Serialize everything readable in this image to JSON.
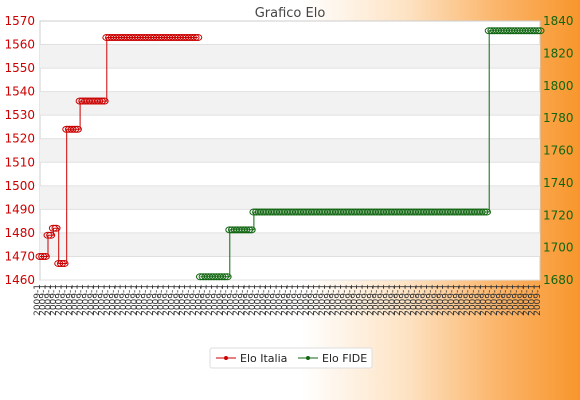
{
  "chart_data": {
    "type": "line",
    "title": "Grafico Elo",
    "left_axis": {
      "ylim": [
        1460,
        1570
      ],
      "ticks": [
        1460,
        1470,
        1480,
        1490,
        1500,
        1510,
        1520,
        1530,
        1540,
        1550,
        1560,
        1570
      ],
      "color": "#cc0000"
    },
    "right_axis": {
      "ylim": [
        1680,
        1840
      ],
      "ticks": [
        1680,
        1700,
        1720,
        1740,
        1760,
        1780,
        1800,
        1820,
        1840
      ],
      "color": "#116611"
    },
    "grid": true,
    "legend_position": "bottom",
    "series": [
      {
        "name": "Elo Italia",
        "axis": "left",
        "color": "#cc0000",
        "points": [
          [
            0,
            1470
          ],
          [
            1,
            1470
          ],
          [
            2,
            1470
          ],
          [
            3,
            1479
          ],
          [
            4,
            1479
          ],
          [
            5,
            1482
          ],
          [
            6,
            1482
          ],
          [
            7,
            1467
          ],
          [
            8,
            1467
          ],
          [
            9,
            1467
          ],
          [
            10,
            1524
          ],
          [
            11,
            1524
          ],
          [
            12,
            1524
          ],
          [
            13,
            1524
          ],
          [
            14,
            1524
          ],
          [
            15,
            1536
          ],
          [
            16,
            1536
          ],
          [
            17,
            1536
          ],
          [
            18,
            1536
          ],
          [
            19,
            1536
          ],
          [
            20,
            1536
          ],
          [
            21,
            1536
          ],
          [
            22,
            1536
          ],
          [
            23,
            1536
          ],
          [
            24,
            1536
          ],
          [
            25,
            1563
          ],
          [
            26,
            1563
          ],
          [
            27,
            1563
          ],
          [
            28,
            1563
          ],
          [
            29,
            1563
          ],
          [
            30,
            1563
          ],
          [
            31,
            1563
          ],
          [
            32,
            1563
          ],
          [
            33,
            1563
          ],
          [
            34,
            1563
          ],
          [
            35,
            1563
          ],
          [
            36,
            1563
          ],
          [
            37,
            1563
          ],
          [
            38,
            1563
          ],
          [
            39,
            1563
          ],
          [
            40,
            1563
          ],
          [
            41,
            1563
          ],
          [
            42,
            1563
          ],
          [
            43,
            1563
          ],
          [
            44,
            1563
          ],
          [
            45,
            1563
          ],
          [
            46,
            1563
          ],
          [
            47,
            1563
          ],
          [
            48,
            1563
          ],
          [
            49,
            1563
          ],
          [
            50,
            1563
          ],
          [
            51,
            1563
          ],
          [
            52,
            1563
          ],
          [
            53,
            1563
          ],
          [
            54,
            1563
          ],
          [
            55,
            1563
          ],
          [
            56,
            1563
          ],
          [
            57,
            1563
          ],
          [
            58,
            1563
          ],
          [
            59,
            1563
          ]
        ]
      },
      {
        "name": "Elo FIDE",
        "axis": "right",
        "color": "#116611",
        "points": [
          [
            60,
            1682
          ],
          [
            61,
            1682
          ],
          [
            62,
            1682
          ],
          [
            63,
            1682
          ],
          [
            64,
            1682
          ],
          [
            65,
            1682
          ],
          [
            66,
            1682
          ],
          [
            67,
            1682
          ],
          [
            68,
            1682
          ],
          [
            69,
            1682
          ],
          [
            70,
            1682
          ],
          [
            71,
            1711
          ],
          [
            72,
            1711
          ],
          [
            73,
            1711
          ],
          [
            74,
            1711
          ],
          [
            75,
            1711
          ],
          [
            76,
            1711
          ],
          [
            77,
            1711
          ],
          [
            78,
            1711
          ],
          [
            79,
            1711
          ],
          [
            80,
            1722
          ],
          [
            81,
            1722
          ],
          [
            82,
            1722
          ],
          [
            83,
            1722
          ],
          [
            84,
            1722
          ],
          [
            85,
            1722
          ],
          [
            86,
            1722
          ],
          [
            87,
            1722
          ],
          [
            88,
            1722
          ],
          [
            89,
            1722
          ],
          [
            90,
            1722
          ],
          [
            91,
            1722
          ],
          [
            92,
            1722
          ],
          [
            93,
            1722
          ],
          [
            94,
            1722
          ],
          [
            95,
            1722
          ],
          [
            96,
            1722
          ],
          [
            97,
            1722
          ],
          [
            98,
            1722
          ],
          [
            99,
            1722
          ],
          [
            100,
            1722
          ],
          [
            101,
            1722
          ],
          [
            102,
            1722
          ],
          [
            103,
            1722
          ],
          [
            104,
            1722
          ],
          [
            105,
            1722
          ],
          [
            106,
            1722
          ],
          [
            107,
            1722
          ],
          [
            108,
            1722
          ],
          [
            109,
            1722
          ],
          [
            110,
            1722
          ],
          [
            111,
            1722
          ],
          [
            112,
            1722
          ],
          [
            113,
            1722
          ],
          [
            114,
            1722
          ],
          [
            115,
            1722
          ],
          [
            116,
            1722
          ],
          [
            117,
            1722
          ],
          [
            118,
            1722
          ],
          [
            119,
            1722
          ],
          [
            120,
            1722
          ],
          [
            121,
            1722
          ],
          [
            122,
            1722
          ],
          [
            123,
            1722
          ],
          [
            124,
            1722
          ],
          [
            125,
            1722
          ],
          [
            126,
            1722
          ],
          [
            127,
            1722
          ],
          [
            128,
            1722
          ],
          [
            129,
            1722
          ],
          [
            130,
            1722
          ],
          [
            131,
            1722
          ],
          [
            132,
            1722
          ],
          [
            133,
            1722
          ],
          [
            134,
            1722
          ],
          [
            135,
            1722
          ],
          [
            136,
            1722
          ],
          [
            137,
            1722
          ],
          [
            138,
            1722
          ],
          [
            139,
            1722
          ],
          [
            140,
            1722
          ],
          [
            141,
            1722
          ],
          [
            142,
            1722
          ],
          [
            143,
            1722
          ],
          [
            144,
            1722
          ],
          [
            145,
            1722
          ],
          [
            146,
            1722
          ],
          [
            147,
            1722
          ],
          [
            148,
            1722
          ],
          [
            149,
            1722
          ],
          [
            150,
            1722
          ],
          [
            151,
            1722
          ],
          [
            152,
            1722
          ],
          [
            153,
            1722
          ],
          [
            154,
            1722
          ],
          [
            155,
            1722
          ],
          [
            156,
            1722
          ],
          [
            157,
            1722
          ],
          [
            158,
            1722
          ],
          [
            159,
            1722
          ],
          [
            160,
            1722
          ],
          [
            161,
            1722
          ],
          [
            162,
            1722
          ],
          [
            163,
            1722
          ],
          [
            164,
            1722
          ],
          [
            165,
            1722
          ],
          [
            166,
            1722
          ],
          [
            167,
            1722
          ],
          [
            168,
            1834
          ],
          [
            169,
            1834
          ],
          [
            170,
            1834
          ],
          [
            171,
            1834
          ],
          [
            172,
            1834
          ],
          [
            173,
            1834
          ],
          [
            174,
            1834
          ],
          [
            175,
            1834
          ],
          [
            176,
            1834
          ],
          [
            177,
            1834
          ],
          [
            178,
            1834
          ],
          [
            179,
            1834
          ],
          [
            180,
            1834
          ],
          [
            181,
            1834
          ],
          [
            182,
            1834
          ],
          [
            183,
            1834
          ],
          [
            184,
            1834
          ],
          [
            185,
            1834
          ],
          [
            186,
            1834
          ],
          [
            187,
            1834
          ]
        ]
      }
    ],
    "x_count": 188,
    "x_tick_labels": [
      "2009-1",
      "2009-1",
      "2009-1",
      "2009-1",
      "2009-1",
      "2009-1",
      "2009-1",
      "2009-1",
      "2009-1",
      "2009-1",
      "2009-1",
      "2009-1",
      "2009-1",
      "2009-1",
      "2009-1",
      "2009-1",
      "2009-1",
      "2009-1",
      "2009-1",
      "2009-1",
      "2009-1",
      "2009-1",
      "2009-1",
      "2009-1",
      "2009-1",
      "2009-1",
      "2009-1",
      "2009-1",
      "2009-1",
      "2009-1",
      "2009-1",
      "2009-1",
      "2009-1",
      "2009-1",
      "2009-1",
      "2009-1",
      "2009-1",
      "2009-1",
      "2009-1",
      "2009-1",
      "2009-1",
      "2009-1",
      "2009-1",
      "2009-1",
      "2009-1",
      "2009-1",
      "2009-1",
      "2009-1",
      "2009-1",
      "2009-1",
      "2009-1",
      "2009-1",
      "2009-1",
      "2009-1",
      "2009-1",
      "2009-1",
      "2009-1",
      "2009-1",
      "2009-1",
      "2009-1",
      "2009-1",
      "2009-1",
      "2009-1",
      "2009-1",
      "2009-1",
      "2009-1",
      "2009-1",
      "2009-1",
      "2009-1",
      "2009-1",
      "2009-1",
      "2009-1",
      "2009-1",
      "2009-1",
      "2009-1",
      "2009-1",
      "2009-1",
      "2009-1",
      "2009-1",
      "2009-1",
      "2009-1",
      "2009-1",
      "2009-1",
      "2009-1",
      "2009-1",
      "2009-1",
      "2009-1",
      "2009-1",
      "2009-1",
      "2009-1",
      "2009-1",
      "2009-1",
      "2009-1",
      "2009-1"
    ]
  }
}
